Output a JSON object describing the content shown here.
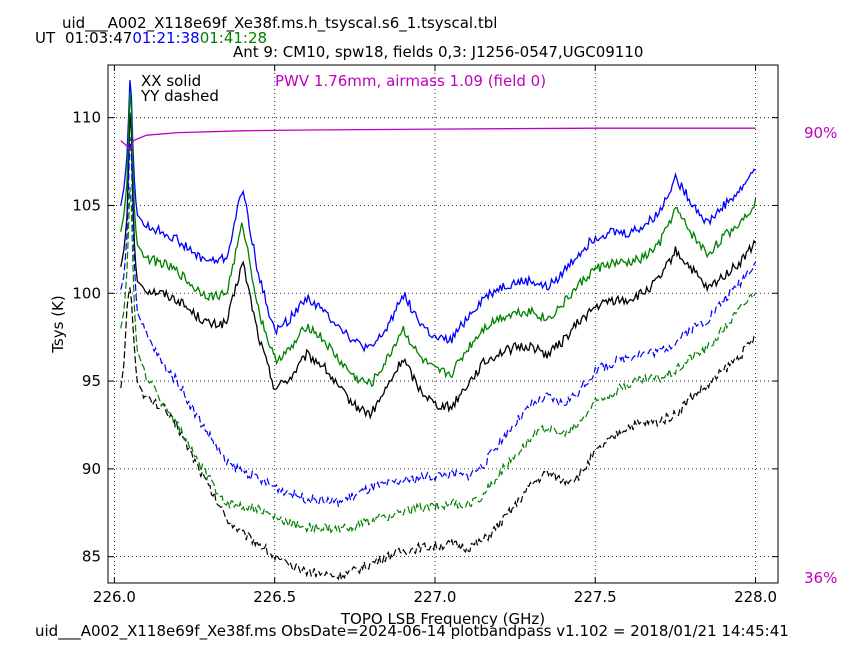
{
  "header": {
    "title": "uid___A002_X118e69f_Xe38f.ms.h_tsyscal.s6_1.tsyscal.tbl",
    "ut_prefix": "UT",
    "ut_times": [
      {
        "text": "01:03:47",
        "color": "#000000"
      },
      {
        "text": "01:21:38",
        "color": "#0000ff"
      },
      {
        "text": "01:41:28",
        "color": "#008000"
      }
    ],
    "subtitle": "Ant 9: CM10,  spw18,  fields 0,3: J1256-0547,UGC09110"
  },
  "footer": {
    "text": "uid___A002_X118e69f_Xe38f.ms  ObsDate=2024-06-14   plotbandpass v1.102 = 2018/01/21 14:45:41"
  },
  "legend": {
    "xx": "XX solid",
    "yy": "YY dashed",
    "pwv": "PWV 1.76mm, airmass 1.09 (field 0)",
    "pwv_color": "#c000c0"
  },
  "chart_data": {
    "type": "line",
    "xlabel": "TOPO LSB Frequency (GHz)",
    "ylabel": "Tsys (K)",
    "xlim": [
      225.98,
      228.07
    ],
    "ylim": [
      83.5,
      113
    ],
    "xticks": [
      "226.0",
      "226.5",
      "227.0",
      "227.5",
      "228.0"
    ],
    "xtick_values": [
      226.0,
      226.5,
      227.0,
      227.5,
      228.0
    ],
    "yticks": [
      "85",
      "90",
      "95",
      "100",
      "105",
      "110"
    ],
    "ytick_values": [
      85,
      90,
      95,
      100,
      105,
      110
    ],
    "grid": true,
    "right_axis_labels": {
      "top": "90%",
      "bottom": "36%",
      "top_value": 90,
      "bottom_value": 36
    },
    "x": [
      226.02,
      226.03,
      226.04,
      226.05,
      226.06,
      226.07,
      226.1,
      226.15,
      226.2,
      226.25,
      226.3,
      226.35,
      226.4,
      226.45,
      226.5,
      226.55,
      226.6,
      226.65,
      226.7,
      226.75,
      226.8,
      226.85,
      226.9,
      226.95,
      227.0,
      227.05,
      227.1,
      227.15,
      227.2,
      227.25,
      227.3,
      227.35,
      227.4,
      227.45,
      227.5,
      227.55,
      227.6,
      227.65,
      227.7,
      227.75,
      227.8,
      227.85,
      227.9,
      227.95,
      228.0
    ],
    "series": [
      {
        "pol": "XX",
        "time": "01:03:47",
        "color": "#000000",
        "dash": false,
        "values": [
          101.5,
          102.5,
          104.5,
          111.5,
          103.5,
          100.7,
          100.2,
          100.0,
          99.6,
          98.8,
          98.2,
          98.3,
          101.8,
          97.5,
          94.6,
          95.2,
          96.5,
          95.9,
          94.6,
          93.6,
          93.1,
          94.6,
          96.3,
          94.6,
          93.7,
          93.5,
          94.8,
          96.0,
          96.6,
          96.9,
          97.0,
          96.5,
          97.3,
          98.4,
          99.2,
          99.6,
          99.6,
          100.0,
          100.8,
          102.4,
          101.4,
          100.2,
          101.0,
          101.7,
          102.9
        ]
      },
      {
        "pol": "XX",
        "time": "01:21:38",
        "color": "#0000ff",
        "dash": false,
        "values": [
          105.0,
          106.0,
          108.0,
          113.0,
          107.0,
          104.5,
          103.8,
          103.5,
          103.0,
          102.2,
          101.8,
          102.0,
          106.0,
          101.0,
          97.8,
          98.6,
          99.8,
          99.0,
          98.2,
          97.2,
          96.8,
          98.0,
          100.0,
          98.4,
          97.4,
          97.3,
          98.6,
          99.7,
          100.3,
          100.6,
          100.7,
          100.3,
          101.2,
          102.3,
          103.2,
          103.5,
          103.4,
          103.8,
          104.6,
          106.6,
          105.2,
          104.0,
          105.0,
          105.8,
          107.2
        ]
      },
      {
        "pol": "XX",
        "time": "01:41:28",
        "color": "#008000",
        "dash": false,
        "values": [
          103.5,
          104.5,
          106.5,
          112.5,
          105.5,
          102.8,
          102.0,
          101.7,
          101.2,
          100.3,
          99.8,
          100.0,
          104.0,
          99.0,
          96.2,
          96.8,
          98.2,
          97.4,
          96.2,
          95.2,
          94.8,
          96.2,
          98.0,
          96.4,
          95.6,
          95.4,
          96.8,
          98.0,
          98.6,
          98.9,
          99.0,
          98.5,
          99.4,
          100.5,
          101.4,
          101.7,
          101.7,
          102.0,
          102.8,
          104.8,
          103.4,
          102.2,
          103.2,
          104.0,
          105.2
        ]
      },
      {
        "pol": "YY",
        "time": "01:03:47",
        "color": "#000000",
        "dash": true,
        "values": [
          94.6,
          96.0,
          99.5,
          100.5,
          97.5,
          95.0,
          94.0,
          93.5,
          92.3,
          90.5,
          88.8,
          87.2,
          86.3,
          85.8,
          85.0,
          84.4,
          84.2,
          84.0,
          83.9,
          84.2,
          84.6,
          85.0,
          85.3,
          85.5,
          85.6,
          85.7,
          85.5,
          85.9,
          86.8,
          87.9,
          89.1,
          89.8,
          89.3,
          89.6,
          90.9,
          91.7,
          92.4,
          92.6,
          92.7,
          93.1,
          94.1,
          94.7,
          95.6,
          96.4,
          97.5
        ]
      },
      {
        "pol": "YY",
        "time": "01:21:38",
        "color": "#0000ff",
        "dash": true,
        "values": [
          100.2,
          101.0,
          103.5,
          110.0,
          102.5,
          99.0,
          97.6,
          96.0,
          94.9,
          93.2,
          91.8,
          90.3,
          89.9,
          89.4,
          89.0,
          88.6,
          88.3,
          88.2,
          88.1,
          88.5,
          88.9,
          89.1,
          89.3,
          89.5,
          89.6,
          89.7,
          89.6,
          90.2,
          91.5,
          92.6,
          93.6,
          94.1,
          93.7,
          94.4,
          95.6,
          96.0,
          96.4,
          96.6,
          96.7,
          97.2,
          98.0,
          98.5,
          99.6,
          100.6,
          101.8
        ]
      },
      {
        "pol": "YY",
        "time": "01:41:28",
        "color": "#008000",
        "dash": true,
        "values": [
          98.0,
          99.0,
          101.5,
          107.0,
          100.0,
          96.8,
          95.2,
          93.8,
          92.4,
          90.7,
          89.3,
          88.0,
          87.9,
          87.7,
          87.2,
          86.9,
          86.7,
          86.6,
          86.5,
          86.8,
          87.0,
          87.3,
          87.5,
          87.8,
          87.9,
          88.0,
          87.9,
          88.5,
          89.7,
          90.8,
          91.8,
          92.4,
          91.9,
          92.6,
          93.8,
          94.3,
          94.8,
          95.1,
          95.2,
          95.6,
          96.4,
          96.9,
          98.0,
          99.1,
          100.2
        ]
      }
    ],
    "pwv_curve": {
      "name": "PWV 1.76mm, airmass 1.09 (field 0)",
      "color": "#c000c0",
      "x": [
        226.02,
        226.05,
        226.06,
        226.1,
        226.2,
        226.4,
        226.6,
        227.0,
        227.5,
        228.0
      ],
      "y": [
        108.7,
        108.2,
        108.7,
        109.0,
        109.15,
        109.25,
        109.3,
        109.35,
        109.4,
        109.4
      ]
    }
  }
}
